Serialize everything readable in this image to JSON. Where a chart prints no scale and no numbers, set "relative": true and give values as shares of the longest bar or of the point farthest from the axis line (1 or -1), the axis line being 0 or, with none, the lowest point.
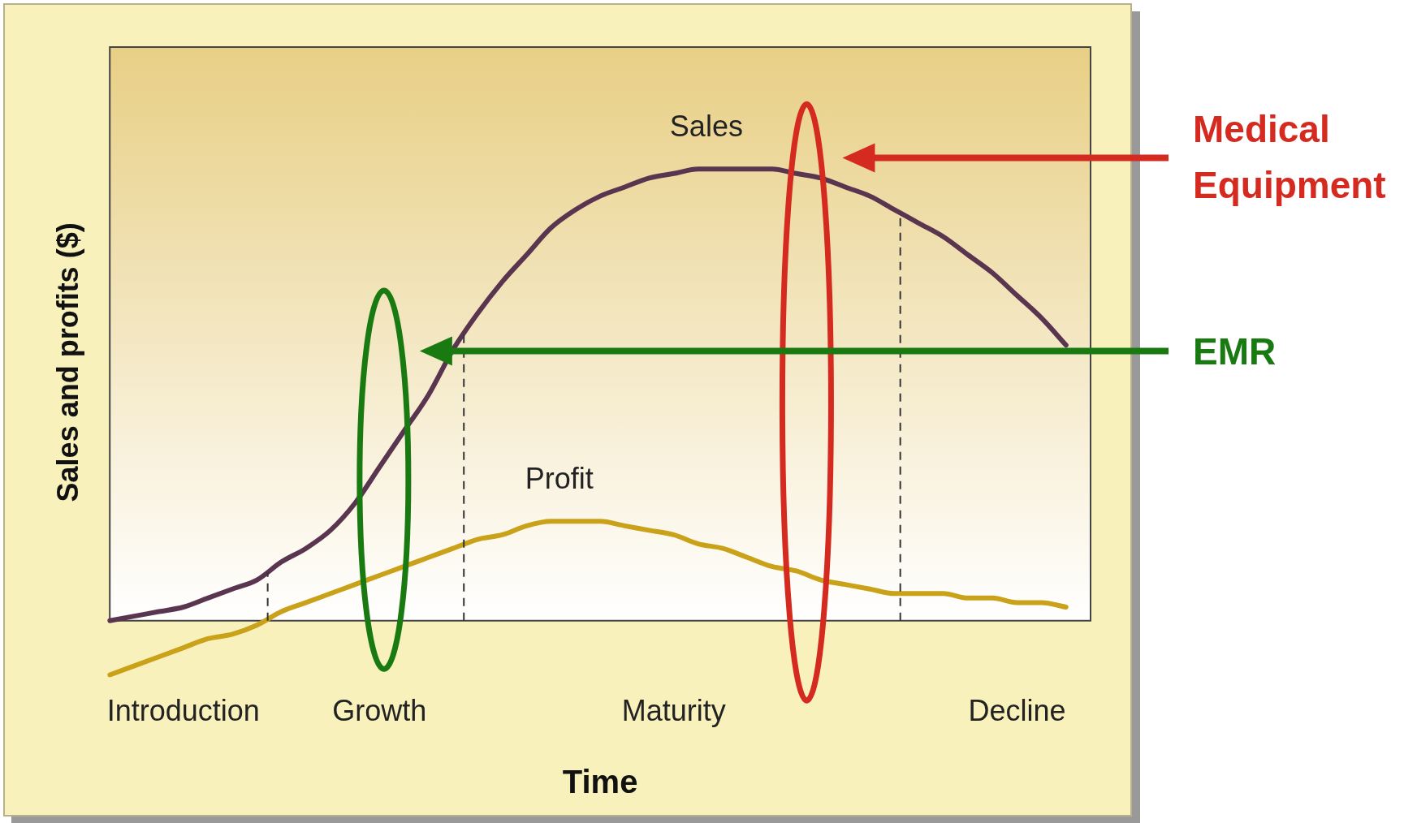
{
  "chart_data": {
    "type": "line",
    "relative": true,
    "xlabel": "Time",
    "ylabel": "Sales and profits ($)",
    "categories": [
      null,
      null,
      null,
      "Introduction",
      null,
      null,
      null,
      null,
      null,
      null,
      null,
      "Growth",
      null,
      null,
      null,
      null,
      null,
      null,
      null,
      null,
      null,
      null,
      null,
      "Maturity",
      null,
      null,
      null,
      null,
      null,
      null,
      null,
      null,
      null,
      null,
      null,
      null,
      null,
      "Decline",
      null,
      null,
      null
    ],
    "series": [
      {
        "name": "Sales",
        "color": "#5a3550",
        "values": [
          0,
          0.01,
          0.02,
          0.03,
          0.05,
          0.07,
          0.09,
          0.13,
          0.16,
          0.2,
          0.26,
          0.34,
          0.42,
          0.5,
          0.6,
          0.68,
          0.75,
          0.81,
          0.87,
          0.91,
          0.94,
          0.96,
          0.98,
          0.99,
          1,
          1,
          1,
          1,
          0.99,
          0.98,
          0.96,
          0.94,
          0.91,
          0.88,
          0.85,
          0.81,
          0.77,
          0.72,
          0.67,
          0.61,
          null
        ]
      },
      {
        "name": "Profit",
        "color": "#c9a21a",
        "values": [
          -0.12,
          -0.1,
          -0.08,
          -0.06,
          -0.04,
          -0.03,
          -0.01,
          0.02,
          0.04,
          0.06,
          0.08,
          0.1,
          0.12,
          0.14,
          0.16,
          0.18,
          0.19,
          0.21,
          0.22,
          0.22,
          0.22,
          0.21,
          0.2,
          0.19,
          0.17,
          0.16,
          0.14,
          0.12,
          0.11,
          0.09,
          0.08,
          0.07,
          0.06,
          0.06,
          0.06,
          0.05,
          0.05,
          0.04,
          0.04,
          0.03,
          null
        ]
      }
    ],
    "annotations": [
      "Medical Equipment",
      "EMR"
    ],
    "grid": false,
    "legend": false,
    "marker": "none",
    "line_style": "solid"
  }
}
